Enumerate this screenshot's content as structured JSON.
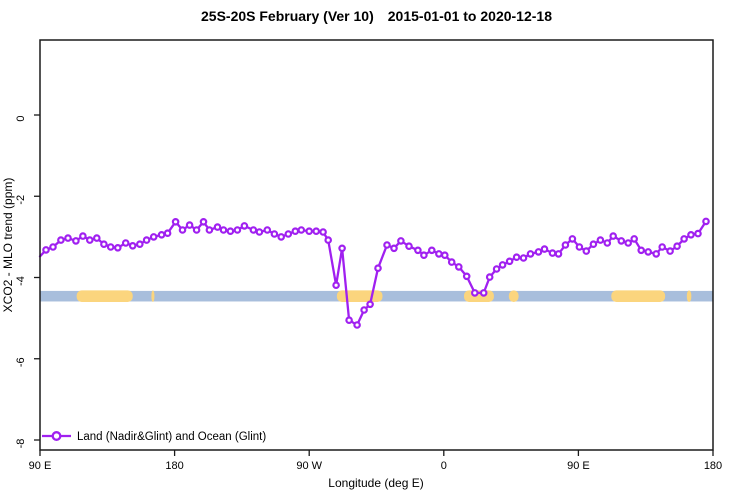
{
  "title": {
    "left": "25S-20S February (Ver 10)",
    "right": "2015-01-01 to 2020-12-18"
  },
  "colors": {
    "series": "#A020F0",
    "marker_fill": "#FFFFFF",
    "ocean_band": "#A8BEDC",
    "land_band": "#FBD57E",
    "axis": "#1A1A1A",
    "background": "#FFFFFF"
  },
  "chart_data": {
    "type": "line",
    "title": "25S-20S February (Ver 10)  2015-01-01 to 2020-12-18",
    "xlabel": "Longitude (deg E)",
    "ylabel": "XCO2 - MLO trend (ppm)",
    "legend_position": "bottom-left-inside",
    "legend": [
      "Land (Nadir&Glint) and Ocean (Glint)"
    ],
    "grid": false,
    "x_axis": {
      "note": "longitude increases eastward from 90E wrapping through 180, 90W, 0, 90E to 180 (450 deg total span)",
      "tick_lons": [
        90,
        180,
        270,
        360,
        450,
        540
      ],
      "tick_labels": [
        "90 E",
        "180",
        "90 W",
        "0",
        "90 E",
        "180"
      ],
      "xlim": [
        90,
        540
      ]
    },
    "y_axis": {
      "tick_values": [
        0,
        -2,
        -4,
        -6,
        -8
      ],
      "tick_labels": [
        "0",
        "-2",
        "-4",
        "-6",
        "-8"
      ],
      "ylim": [
        -8.3,
        1.85
      ]
    },
    "surface_band": {
      "description": "horizontal strip marking surface type along longitude: blue = ocean, yellow = land",
      "value_center": -4.46,
      "value_halfwidth": 0.13,
      "land_lon_segments": [
        [
          114.5,
          152
        ],
        [
          164.5,
          166.5
        ],
        [
          288.5,
          319
        ],
        [
          373.5,
          393.5
        ],
        [
          403.5,
          410
        ],
        [
          472,
          508
        ],
        [
          522.5,
          525.5
        ]
      ]
    },
    "series": [
      {
        "name": "Land (Nadir&Glint) and Ocean (Glint)",
        "marker": "open-circle",
        "x": [
          90,
          94,
          98.7,
          104,
          108.7,
          114,
          118.7,
          123.3,
          128,
          132.7,
          137.3,
          142,
          147.3,
          152,
          156.7,
          161.3,
          166,
          171.3,
          175.3,
          180.7,
          185.3,
          190,
          194.7,
          199.3,
          203.3,
          208.7,
          212.7,
          217.3,
          222,
          226.7,
          232.7,
          236.7,
          242,
          246.7,
          251.3,
          256,
          260.7,
          264.7,
          270,
          274.7,
          279.3,
          282.7,
          288,
          292,
          296.7,
          302,
          306.7,
          310.7,
          316,
          322,
          326.7,
          331.3,
          336.7,
          342.7,
          346.7,
          352,
          356.7,
          360.7,
          365.3,
          370,
          375.3,
          380.7,
          386.7,
          390.7,
          395.3,
          399.3,
          404,
          408.7,
          413.3,
          418,
          423.3,
          427.3,
          432.7,
          436.7,
          441.3,
          446,
          450.7,
          455.3,
          460,
          464.7,
          469.3,
          473.3,
          478.7,
          483.3,
          487.3,
          492,
          496.7,
          502,
          506,
          511.3,
          516,
          520.7,
          525.3,
          530,
          535.3
        ],
        "y": [
          -3.48,
          -3.32,
          -3.25,
          -3.08,
          -3.03,
          -3.1,
          -2.98,
          -3.08,
          -3.03,
          -3.18,
          -3.25,
          -3.27,
          -3.15,
          -3.22,
          -3.18,
          -3.08,
          -3.0,
          -2.95,
          -2.91,
          -2.63,
          -2.83,
          -2.71,
          -2.83,
          -2.63,
          -2.83,
          -2.76,
          -2.83,
          -2.86,
          -2.83,
          -2.73,
          -2.83,
          -2.88,
          -2.83,
          -2.93,
          -3.0,
          -2.93,
          -2.86,
          -2.83,
          -2.86,
          -2.86,
          -2.88,
          -3.08,
          -4.19,
          -3.28,
          -5.05,
          -5.17,
          -4.8,
          -4.66,
          -3.77,
          -3.2,
          -3.28,
          -3.1,
          -3.23,
          -3.33,
          -3.45,
          -3.33,
          -3.42,
          -3.45,
          -3.62,
          -3.74,
          -3.97,
          -4.38,
          -4.38,
          -3.99,
          -3.79,
          -3.69,
          -3.6,
          -3.5,
          -3.52,
          -3.42,
          -3.37,
          -3.3,
          -3.4,
          -3.42,
          -3.2,
          -3.05,
          -3.25,
          -3.35,
          -3.18,
          -3.08,
          -3.15,
          -2.98,
          -3.1,
          -3.15,
          -3.05,
          -3.33,
          -3.37,
          -3.42,
          -3.25,
          -3.35,
          -3.23,
          -3.05,
          -2.95,
          -2.92,
          -2.62
        ]
      }
    ]
  }
}
